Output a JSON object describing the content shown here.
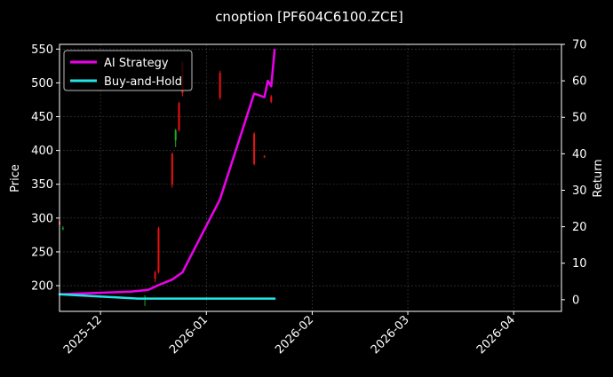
{
  "chart_data": {
    "type": "line",
    "title": "cnoption [PF604C6100.ZCE]",
    "xlabel": "",
    "ylabel": "Price",
    "y2label": "Return",
    "xlim": [
      "2025-11-19",
      "2026-04-15"
    ],
    "ylim": [
      162,
      557
    ],
    "y2lim": [
      -3.2,
      70
    ],
    "x_ticks": [
      "2025-12",
      "2026-01",
      "2026-02",
      "2026-03",
      "2026-04"
    ],
    "y_ticks": [
      200,
      250,
      300,
      350,
      400,
      450,
      500,
      550
    ],
    "y2_ticks": [
      0,
      10,
      20,
      30,
      40,
      50,
      60,
      70
    ],
    "grid": true,
    "legend_position": "top-left",
    "colors": {
      "background": "#000000",
      "ai_strategy": "#ee00ee",
      "buy_and_hold": "#22e6e6",
      "candle_up": "#22aa22",
      "candle_down": "#ee1111",
      "grid": "#444444",
      "axes": "#ffffff"
    },
    "series": [
      {
        "name": "AI Strategy",
        "axis": "right",
        "x": [
          "2025-11-19",
          "2025-12-10",
          "2025-12-15",
          "2025-12-18",
          "2025-12-22",
          "2025-12-25",
          "2025-12-28",
          "2026-01-05",
          "2026-01-15",
          "2026-01-18",
          "2026-01-19",
          "2026-01-20",
          "2026-01-21"
        ],
        "y": [
          1.5,
          2.2,
          2.7,
          4.0,
          5.5,
          7.5,
          13,
          27.5,
          56.5,
          55.5,
          60,
          58.5,
          68.5
        ]
      },
      {
        "name": "Buy-and-Hold",
        "axis": "right",
        "x": [
          "2025-11-19",
          "2025-12-12",
          "2026-01-21"
        ],
        "y": [
          1.5,
          0.3,
          0.3
        ]
      }
    ],
    "candles": [
      {
        "date": "2025-11-19",
        "open": 295,
        "close": 290,
        "high": 310,
        "low": 280
      },
      {
        "date": "2025-11-20",
        "open": 285,
        "close": 285,
        "high": 288,
        "low": 282
      },
      {
        "date": "2025-12-14",
        "open": 180,
        "close": 182,
        "high": 186,
        "low": 170
      },
      {
        "date": "2025-12-17",
        "open": 220,
        "close": 210,
        "high": 222,
        "low": 205
      },
      {
        "date": "2025-12-18",
        "open": 285,
        "close": 220,
        "high": 287,
        "low": 218
      },
      {
        "date": "2025-12-22",
        "open": 395,
        "close": 350,
        "high": 397,
        "low": 345
      },
      {
        "date": "2025-12-23",
        "open": 415,
        "close": 430,
        "high": 432,
        "low": 405
      },
      {
        "date": "2025-12-24",
        "open": 470,
        "close": 430,
        "high": 472,
        "low": 428
      },
      {
        "date": "2025-12-25",
        "open": 530,
        "close": 485,
        "high": 532,
        "low": 480
      },
      {
        "date": "2026-01-05",
        "open": 515,
        "close": 478,
        "high": 518,
        "low": 475
      },
      {
        "date": "2026-01-15",
        "open": 425,
        "close": 380,
        "high": 427,
        "low": 378
      },
      {
        "date": "2026-01-18",
        "open": 392,
        "close": 390,
        "high": 393,
        "low": 389
      },
      {
        "date": "2026-01-20",
        "open": 480,
        "close": 472,
        "high": 482,
        "low": 470
      }
    ]
  }
}
